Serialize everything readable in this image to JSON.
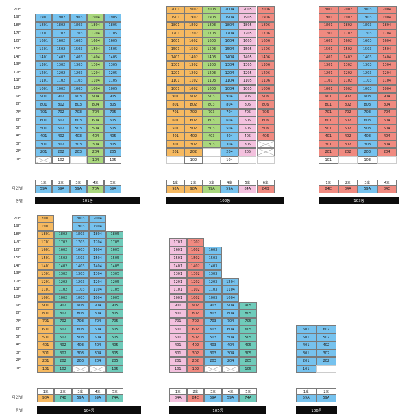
{
  "labels": {
    "type_label": "타입별",
    "building_label": "동별"
  },
  "colors": {
    "B": "#76c2ee",
    "O": "#f6b960",
    "G": "#a9d77d",
    "P": "#f3c1de",
    "R": "#f08a80",
    "T": "#6fcbba",
    "W": "#ffffff"
  },
  "floor_labels_top": [
    "20F",
    "19F",
    "18F",
    "17F",
    "16F",
    "15F",
    "14F",
    "13F",
    "12F",
    "11F",
    "10F",
    "9F",
    "8F",
    "7F",
    "6F",
    "5F",
    "4F",
    "3F",
    "2F",
    "1F"
  ],
  "floor_labels_bottom": [
    "20F",
    "19F",
    "18F",
    "17F",
    "16F",
    "15F",
    "14F",
    "13F",
    "12F",
    "11F",
    "10F",
    "9F",
    "8F",
    "7F",
    "6F",
    "5F",
    "4F",
    "3F",
    "2F",
    "1F"
  ],
  "buildings": [
    {
      "name": "101동",
      "block": "top",
      "column_colors": [
        "B",
        "B",
        "B",
        "G",
        "B"
      ],
      "lines": [
        "1호",
        "2호",
        "3호",
        "4호",
        "5호"
      ],
      "types": [
        "59A",
        "59A",
        "59A",
        "70A",
        "59A"
      ],
      "top_floor": 19,
      "rows": [
        [
          "1901",
          "1902",
          "1903",
          "1904",
          "1905"
        ],
        [
          "1801",
          "1802",
          "1803",
          "1804",
          "1805"
        ],
        [
          "1701",
          "1702",
          "1703",
          "1704",
          "1705"
        ],
        [
          "1601",
          "1602",
          "1603",
          "1604",
          "1605"
        ],
        [
          "1501",
          "1502",
          "1503",
          "1504",
          "1505"
        ],
        [
          "1401",
          "1402",
          "1403",
          "1404",
          "1405"
        ],
        [
          "1301",
          "1302",
          "1303",
          "1304",
          "1305"
        ],
        [
          "1201",
          "1202",
          "1203",
          "1204",
          "1205"
        ],
        [
          "1101",
          "1102",
          "1103",
          "1104",
          "1105"
        ],
        [
          "1001",
          "1002",
          "1003",
          "1004",
          "1005"
        ],
        [
          "901",
          "902",
          "903",
          "904",
          "905"
        ],
        [
          "801",
          "802",
          "803",
          "804",
          "805"
        ],
        [
          "701",
          "702",
          "703",
          "704",
          "705"
        ],
        [
          "601",
          "602",
          "603",
          "604",
          "605"
        ],
        [
          "501",
          "502",
          "503",
          "504",
          "505"
        ],
        [
          "401",
          "402",
          "403",
          "404",
          "405"
        ],
        [
          "301",
          "302",
          "303",
          "304",
          "305"
        ],
        [
          "201",
          "202",
          "203",
          "204",
          "205"
        ],
        [
          "X",
          "102",
          "",
          "104",
          "105"
        ]
      ]
    },
    {
      "name": "102동",
      "block": "top",
      "column_colors": [
        "O",
        "O",
        "G",
        "B",
        "P",
        "R"
      ],
      "lines": [
        "1호",
        "2호",
        "3호",
        "4호",
        "5호",
        "6호"
      ],
      "types": [
        "98A",
        "98A",
        "79A",
        "59A",
        "84A",
        "84B"
      ],
      "top_floor": 20,
      "rows": [
        [
          "2001",
          "2002",
          "2003",
          "2004",
          "2005",
          "2006"
        ],
        [
          "1901",
          "1902",
          "1903",
          "1904",
          "1905",
          "1906"
        ],
        [
          "1801",
          "1802",
          "1803",
          "1804",
          "1805",
          "1806"
        ],
        [
          "1701",
          "1702",
          "1703",
          "1704",
          "1705",
          "1706"
        ],
        [
          "1601",
          "1602",
          "1603",
          "1604",
          "1605",
          "1606"
        ],
        [
          "1501",
          "1502",
          "1503",
          "1504",
          "1505",
          "1506"
        ],
        [
          "1401",
          "1402",
          "1403",
          "1404",
          "1405",
          "1406"
        ],
        [
          "1301",
          "1302",
          "1303",
          "1304",
          "1305",
          "1306"
        ],
        [
          "1201",
          "1202",
          "1203",
          "1204",
          "1205",
          "1206"
        ],
        [
          "1101",
          "1102",
          "1103",
          "1104",
          "1105",
          "1106"
        ],
        [
          "1001",
          "1002",
          "1003",
          "1004",
          "1005",
          "1006"
        ],
        [
          "901",
          "902",
          "903",
          "904",
          "905",
          "906"
        ],
        [
          "801",
          "802",
          "803",
          "804",
          "805",
          "806"
        ],
        [
          "701",
          "702",
          "703",
          "704",
          "705",
          "706"
        ],
        [
          "601",
          "602",
          "603",
          "604",
          "605",
          "606"
        ],
        [
          "501",
          "502",
          "503",
          "504",
          "505",
          "506"
        ],
        [
          "401",
          "402",
          "403",
          "404",
          "405",
          "406"
        ],
        [
          "301",
          "302",
          "303",
          "304",
          "305",
          "X"
        ],
        [
          "201",
          "202",
          "",
          "204",
          "205",
          "X"
        ],
        [
          "",
          "102",
          "",
          "104",
          "",
          ""
        ]
      ]
    },
    {
      "name": "103동",
      "block": "top",
      "column_colors": [
        "R",
        "R",
        "B",
        "R"
      ],
      "lines": [
        "1호",
        "2호",
        "3호",
        "4호"
      ],
      "types": [
        "84C",
        "84A",
        "59A",
        "84C"
      ],
      "top_floor": 20,
      "rows": [
        [
          "2001",
          "2002",
          "2003",
          "2004"
        ],
        [
          "1901",
          "1902",
          "1903",
          "1904"
        ],
        [
          "1801",
          "1802",
          "1803",
          "1804"
        ],
        [
          "1701",
          "1702",
          "1703",
          "1704"
        ],
        [
          "1601",
          "1602",
          "1603",
          "1604"
        ],
        [
          "1501",
          "1502",
          "1503",
          "1504"
        ],
        [
          "1401",
          "1402",
          "1403",
          "1404"
        ],
        [
          "1301",
          "1302",
          "1303",
          "1304"
        ],
        [
          "1201",
          "1202",
          "1203",
          "1204"
        ],
        [
          "1101",
          "1102",
          "1103",
          "1104"
        ],
        [
          "1001",
          "1002",
          "1003",
          "1004"
        ],
        [
          "901",
          "902",
          "903",
          "904"
        ],
        [
          "801",
          "802",
          "803",
          "804"
        ],
        [
          "701",
          "702",
          "703",
          "704"
        ],
        [
          "601",
          "602",
          "603",
          "604"
        ],
        [
          "501",
          "502",
          "503",
          "504"
        ],
        [
          "401",
          "402",
          "403",
          "404"
        ],
        [
          "301",
          "302",
          "303",
          "304"
        ],
        [
          "201",
          "202",
          "203",
          "204"
        ],
        [
          "101",
          "",
          "103",
          ""
        ]
      ]
    },
    {
      "name": "104동",
      "block": "bottom",
      "column_colors": [
        "O",
        "T",
        "B",
        "B",
        "T"
      ],
      "lines": [
        "1호",
        "2호",
        "3호",
        "4호",
        "5호"
      ],
      "types": [
        "98A",
        "74B",
        "59A",
        "59A",
        "74A"
      ],
      "top_floor": 20,
      "rows": [
        [
          "2001",
          "",
          "2003",
          "2004",
          ""
        ],
        [
          "1901",
          "",
          "1903",
          "1904",
          ""
        ],
        [
          "1801",
          "1802",
          "1803",
          "1804",
          "1805"
        ],
        [
          "1701",
          "1702",
          "1703",
          "1704",
          "1705"
        ],
        [
          "1601",
          "1602",
          "1603",
          "1604",
          "1605"
        ],
        [
          "1501",
          "1502",
          "1503",
          "1504",
          "1505"
        ],
        [
          "1401",
          "1402",
          "1403",
          "1404",
          "1405"
        ],
        [
          "1301",
          "1302",
          "1303",
          "1304",
          "1305"
        ],
        [
          "1201",
          "1202",
          "1203",
          "1204",
          "1205"
        ],
        [
          "1101",
          "1102",
          "1103",
          "1104",
          "1105"
        ],
        [
          "1001",
          "1002",
          "1003",
          "1004",
          "1005"
        ],
        [
          "901",
          "902",
          "903",
          "904",
          "905"
        ],
        [
          "801",
          "802",
          "803",
          "804",
          "805"
        ],
        [
          "701",
          "702",
          "703",
          "704",
          "705"
        ],
        [
          "601",
          "602",
          "603",
          "604",
          "605"
        ],
        [
          "501",
          "502",
          "503",
          "504",
          "505"
        ],
        [
          "401",
          "402",
          "403",
          "404",
          "405"
        ],
        [
          "301",
          "302",
          "303",
          "304",
          "305"
        ],
        [
          "201",
          "202",
          "203",
          "204",
          "205"
        ],
        [
          "101",
          "102",
          "X",
          "X",
          "105"
        ]
      ]
    },
    {
      "name": "105동",
      "block": "bottom",
      "column_colors": [
        "P",
        "R",
        "B",
        "B",
        "T"
      ],
      "lines": [
        "1호",
        "2호",
        "3호",
        "4호",
        "5호"
      ],
      "types": [
        "84A",
        "84C",
        "59A",
        "59A",
        "74A"
      ],
      "top_floor": 17,
      "rows": [
        [
          "1701",
          "1702",
          "",
          "",
          ""
        ],
        [
          "1601",
          "1602",
          "1603",
          "",
          ""
        ],
        [
          "1501",
          "1502",
          "1503",
          "",
          ""
        ],
        [
          "1401",
          "1402",
          "1403",
          "",
          ""
        ],
        [
          "1301",
          "1302",
          "1303",
          "",
          ""
        ],
        [
          "1201",
          "1202",
          "1203",
          "1204",
          ""
        ],
        [
          "1101",
          "1102",
          "1103",
          "1104",
          ""
        ],
        [
          "1001",
          "1002",
          "1003",
          "1004",
          ""
        ],
        [
          "901",
          "902",
          "903",
          "904",
          "905"
        ],
        [
          "801",
          "802",
          "803",
          "804",
          "805"
        ],
        [
          "701",
          "702",
          "703",
          "704",
          "705"
        ],
        [
          "601",
          "602",
          "603",
          "604",
          "605"
        ],
        [
          "501",
          "502",
          "503",
          "504",
          "505"
        ],
        [
          "401",
          "402",
          "403",
          "404",
          "405"
        ],
        [
          "301",
          "302",
          "303",
          "304",
          "305"
        ],
        [
          "201",
          "202",
          "203",
          "204",
          "205"
        ],
        [
          "101",
          "102",
          "X",
          "X",
          "105"
        ]
      ]
    },
    {
      "name": "106동",
      "block": "bottom",
      "column_colors": [
        "B",
        "B"
      ],
      "lines": [
        "1호",
        "2호"
      ],
      "types": [
        "59A",
        "59A"
      ],
      "top_floor": 6,
      "rows": [
        [
          "601",
          "602"
        ],
        [
          "501",
          "502"
        ],
        [
          "401",
          "402"
        ],
        [
          "301",
          "302"
        ],
        [
          "201",
          "202"
        ],
        [
          "101",
          ""
        ]
      ]
    }
  ]
}
